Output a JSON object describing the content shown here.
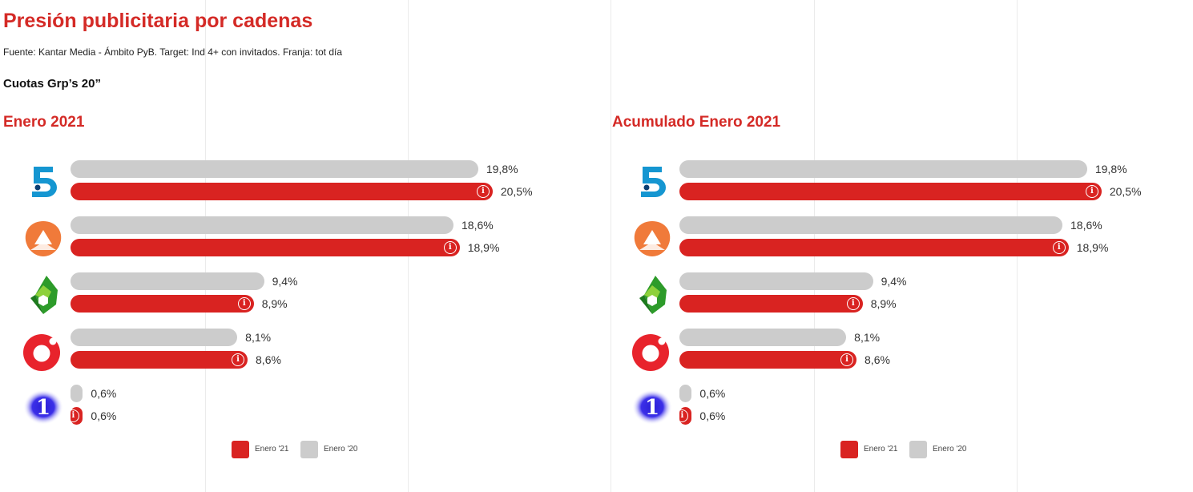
{
  "header": {
    "title": "Presión publicitaria por cadenas",
    "source": "Fuente: Kantar Media - Ámbito PyB. Target: Ind 4+ con invitados. Franja: tot día",
    "metric": "Cuotas Grp’s 20”"
  },
  "legend": {
    "current": "Enero '21",
    "previous": "Enero '20"
  },
  "colors": {
    "current": "#d92321",
    "previous": "#cccccc",
    "title": "#d42a26"
  },
  "chart_data": [
    {
      "type": "bar",
      "orientation": "horizontal",
      "title": "Enero 2021",
      "categories": [
        "telecinco-logo",
        "antena3-logo",
        "lasexta-logo",
        "cuatro-logo",
        "la1-logo"
      ],
      "xlim": [
        0,
        25
      ],
      "grid": true,
      "legend_position": "bottom",
      "series": [
        {
          "name": "Enero '20",
          "values": [
            19.8,
            18.6,
            9.4,
            8.1,
            0.6
          ],
          "labels": [
            "19,8%",
            "18,6%",
            "9,4%",
            "8,1%",
            "0,6%"
          ]
        },
        {
          "name": "Enero '21",
          "values": [
            20.5,
            18.9,
            8.9,
            8.6,
            0.6
          ],
          "labels": [
            "20,5%",
            "18,9%",
            "8,9%",
            "8,6%",
            "0,6%"
          ]
        }
      ]
    },
    {
      "type": "bar",
      "orientation": "horizontal",
      "title": "Acumulado Enero 2021",
      "categories": [
        "telecinco-logo",
        "antena3-logo",
        "lasexta-logo",
        "cuatro-logo",
        "la1-logo"
      ],
      "xlim": [
        0,
        25
      ],
      "grid": true,
      "legend_position": "bottom",
      "series": [
        {
          "name": "Enero '20",
          "values": [
            19.8,
            18.6,
            9.4,
            8.1,
            0.6
          ],
          "labels": [
            "19,8%",
            "18,6%",
            "9,4%",
            "8,1%",
            "0,6%"
          ]
        },
        {
          "name": "Enero '21",
          "values": [
            20.5,
            18.9,
            8.9,
            8.6,
            0.6
          ],
          "labels": [
            "20,5%",
            "18,9%",
            "8,9%",
            "8,6%",
            "0,6%"
          ]
        }
      ]
    }
  ]
}
